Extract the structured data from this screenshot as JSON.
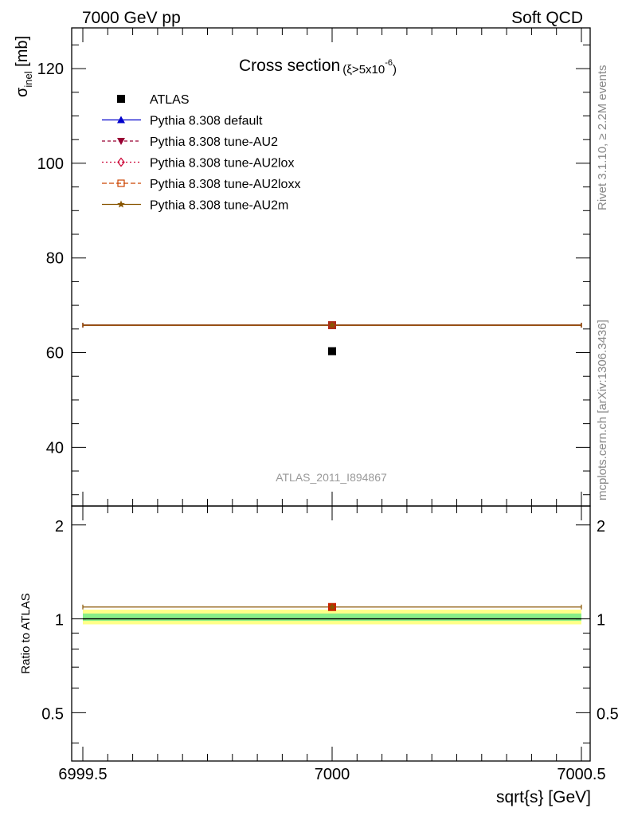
{
  "header": {
    "left": "7000 GeV pp",
    "right": "Soft QCD"
  },
  "side_labels": {
    "rivet": "Rivet 3.1.10, ≥ 2.2M events",
    "mcplots": "mcplots.cern.ch [arXiv:1306.3436]"
  },
  "chart_data": [
    {
      "type": "scatter",
      "panel": "main",
      "title_main": "Cross section",
      "title_cut_prefix": "(ξ>5x10",
      "title_cut_exp": "-6",
      "title_cut_suffix": ")",
      "ylabel_symbol": "σ",
      "ylabel_sub": "inel",
      "ylabel_unit": " [mb]",
      "analysis_label": "ATLAS_2011_I894867",
      "xlim": [
        6999.5,
        7000.5
      ],
      "ylim": [
        27.6,
        128.6
      ],
      "yticks_major": [
        40,
        60,
        80,
        100,
        120
      ],
      "ytick_labels": [
        "40",
        "60",
        "80",
        "100",
        "120"
      ],
      "data_point": {
        "name": "ATLAS",
        "x": 7000,
        "y": 60.3,
        "color": "#000000"
      },
      "series": [
        {
          "name": "Pythia 8.308 default",
          "x": [
            6999.5,
            7000.5
          ],
          "y": 65.8,
          "color": "#0000cc",
          "dash": "",
          "marker": "triangle-up"
        },
        {
          "name": "Pythia 8.308 tune-AU2",
          "x": [
            6999.5,
            7000.5
          ],
          "y": 65.8,
          "color": "#990033",
          "dash": "4,3",
          "marker": "triangle-down"
        },
        {
          "name": "Pythia 8.308 tune-AU2lox",
          "x": [
            6999.5,
            7000.5
          ],
          "y": 65.8,
          "color": "#cc0033",
          "dash": "2,3",
          "marker": "diamond-open"
        },
        {
          "name": "Pythia 8.308 tune-AU2loxx",
          "x": [
            6999.5,
            7000.5
          ],
          "y": 65.8,
          "color": "#cc4400",
          "dash": "6,3",
          "marker": "square-open"
        },
        {
          "name": "Pythia 8.308 tune-AU2m",
          "x": [
            6999.5,
            7000.5
          ],
          "y": 65.8,
          "color": "#885500",
          "dash": "",
          "marker": "star"
        }
      ],
      "legend_position": "top-left"
    },
    {
      "type": "line",
      "panel": "ratio",
      "ylabel": "Ratio to ATLAS",
      "xlabel": "sqrt{s} [GeV]",
      "xlim": [
        6999.5,
        7000.5
      ],
      "ylim": [
        0.35,
        2.3
      ],
      "yticks_major": [
        0.5,
        1,
        2
      ],
      "ytick_labels": [
        "0.5",
        "1",
        "2"
      ],
      "xticks_major": [
        6999.5,
        7000,
        7000.5
      ],
      "xtick_labels": [
        "6999.5",
        "7000",
        "7000.5"
      ],
      "bands": [
        {
          "low": 0.96,
          "high": 1.07,
          "color": "#ffff88"
        },
        {
          "low": 0.985,
          "high": 1.04,
          "color": "#88ee88"
        }
      ],
      "reference": 1.0,
      "mc_ratio": 1.091,
      "mc_color": "#885500",
      "marker_color": "#cc2200"
    }
  ]
}
